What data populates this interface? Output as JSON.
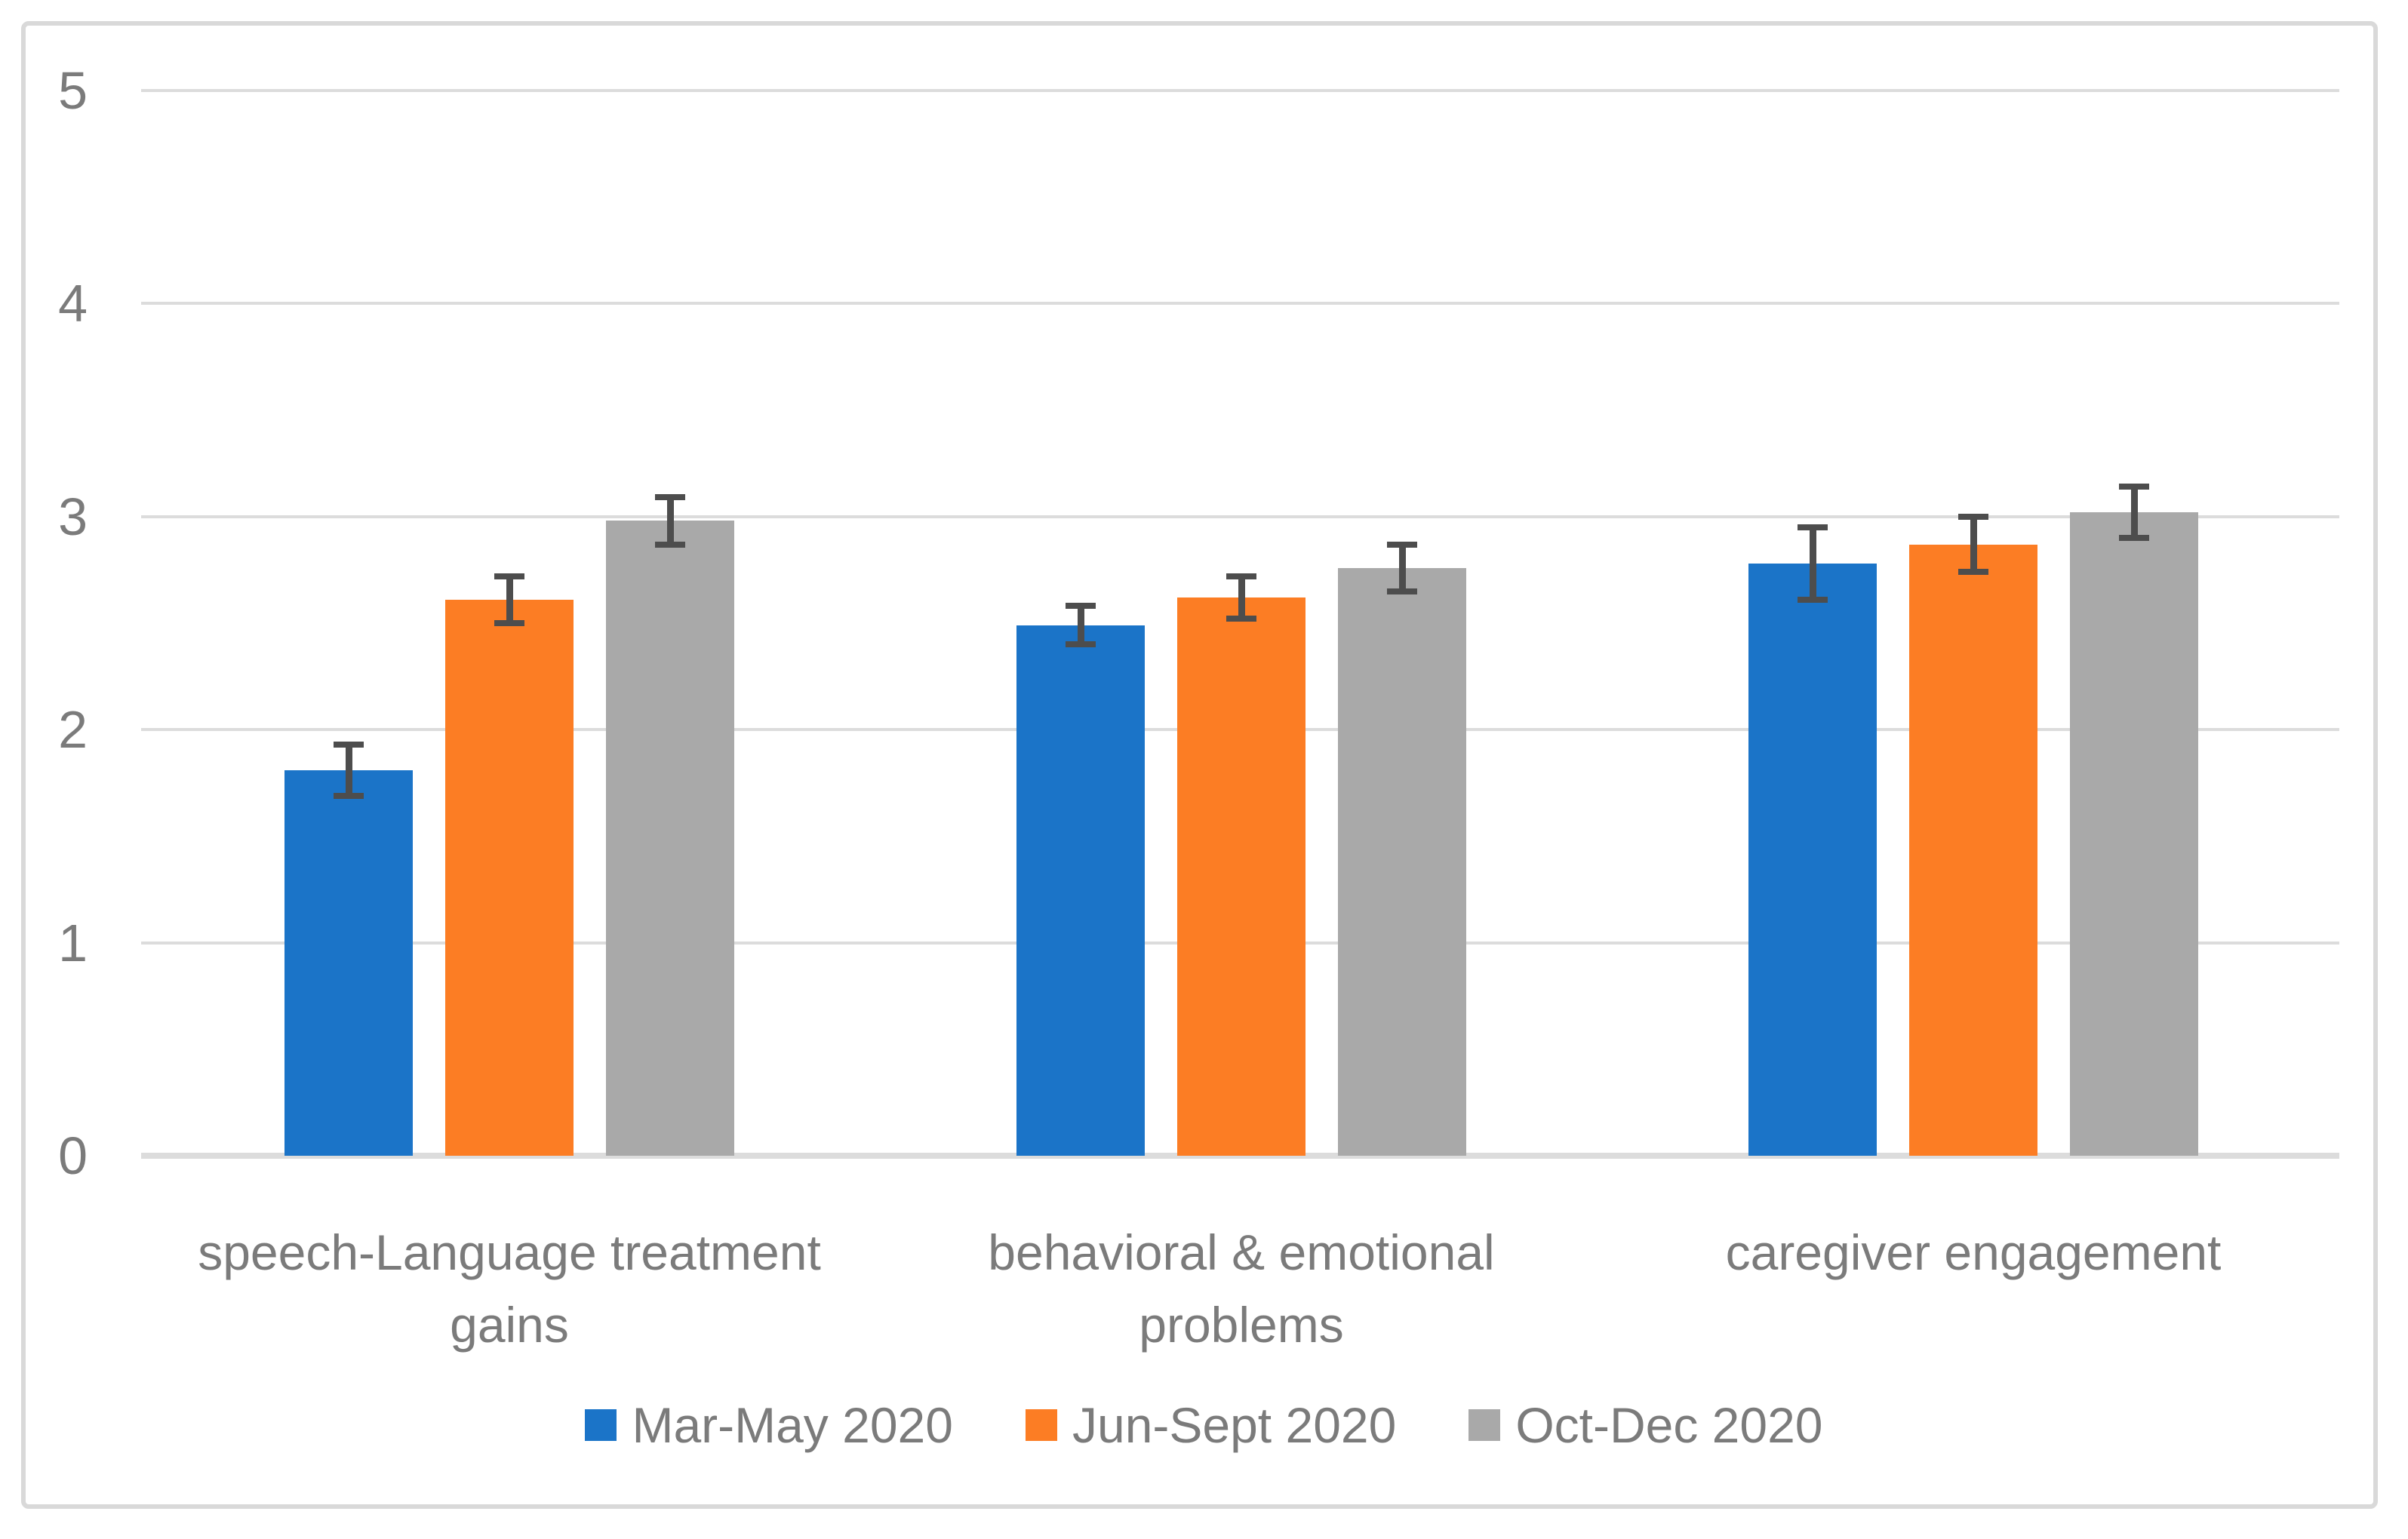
{
  "chart_data": {
    "type": "bar",
    "title": "",
    "xlabel": "",
    "ylabel": "",
    "ylim": [
      0,
      5
    ],
    "yticks": [
      0,
      1,
      2,
      3,
      4,
      5
    ],
    "grid": true,
    "legend_position": "bottom",
    "categories": [
      "speech-Language treatment gains",
      "behavioral & emotional problems",
      "caregiver engagement"
    ],
    "category_lines": [
      [
        "speech-Language treatment",
        "gains"
      ],
      [
        "behavioral & emotional",
        "problems"
      ],
      [
        "caregiver engagement"
      ]
    ],
    "series": [
      {
        "name": "Mar-May 2020",
        "color": "#1B74C8",
        "values": [
          1.81,
          2.49,
          2.78
        ],
        "errors": [
          0.12,
          0.09,
          0.17
        ]
      },
      {
        "name": "Jun-Sept 2020",
        "color": "#FC7D24",
        "values": [
          2.61,
          2.62,
          2.87
        ],
        "errors": [
          0.11,
          0.1,
          0.13
        ]
      },
      {
        "name": "Oct-Dec 2020",
        "color": "#A9A9A9",
        "values": [
          2.98,
          2.76,
          3.02
        ],
        "errors": [
          0.11,
          0.11,
          0.12
        ]
      }
    ],
    "colors": {
      "gridline": "#DCDCDC",
      "axis_text": "#7B7B7B",
      "error_bar": "#4D4D4D",
      "frame_border": "#D9D9D9"
    }
  }
}
